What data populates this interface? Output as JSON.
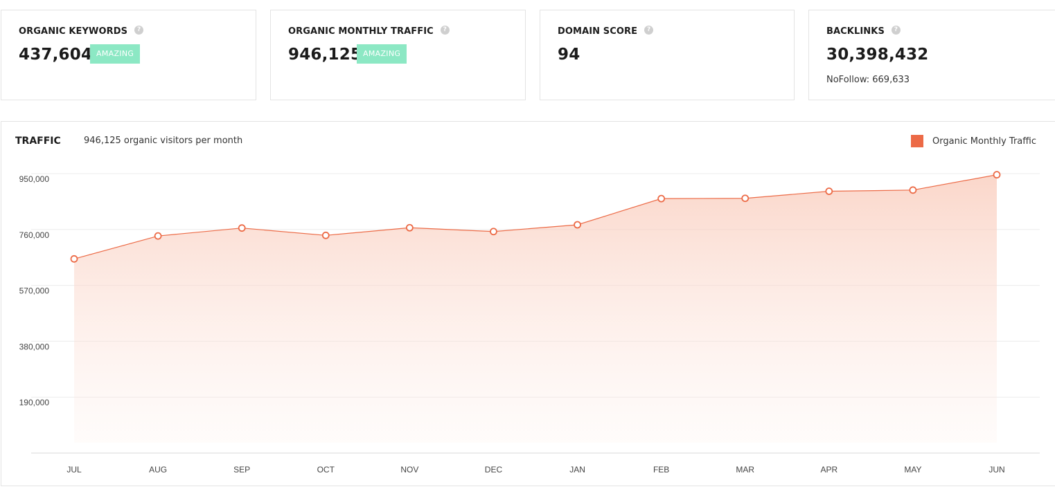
{
  "cards": [
    {
      "label": "ORGANIC KEYWORDS",
      "value": "437,604",
      "badge": "AMAZING",
      "help": "?"
    },
    {
      "label": "ORGANIC MONTHLY TRAFFIC",
      "value": "946,125",
      "badge": "AMAZING",
      "help": "?"
    },
    {
      "label": "DOMAIN SCORE",
      "value": "94",
      "help": "?"
    },
    {
      "label": "BACKLINKS",
      "value": "30,398,432",
      "sub": "NoFollow: 669,633",
      "help": "?"
    }
  ],
  "traffic": {
    "title": "TRAFFIC",
    "subtitle": "946,125 organic visitors per month",
    "legend": "Organic Monthly Traffic"
  },
  "colors": {
    "accent": "#ec6a46",
    "badge": "#8ce8c4"
  },
  "chart_data": {
    "type": "area",
    "categories": [
      "JUL",
      "AUG",
      "SEP",
      "OCT",
      "NOV",
      "DEC",
      "JAN",
      "FEB",
      "MAR",
      "APR",
      "MAY",
      "JUN"
    ],
    "series": [
      {
        "name": "Organic Monthly Traffic",
        "values": [
          660000,
          738000,
          765000,
          740000,
          766000,
          753000,
          776000,
          865000,
          866000,
          890000,
          894000,
          946125
        ]
      }
    ],
    "y_ticks": [
      "190,000",
      "380,000",
      "570,000",
      "760,000",
      "950,000"
    ],
    "y_tick_values": [
      190000,
      380000,
      570000,
      760000,
      950000
    ],
    "ylim": [
      0,
      950000
    ],
    "grid": true,
    "legend_position": "top-right"
  }
}
